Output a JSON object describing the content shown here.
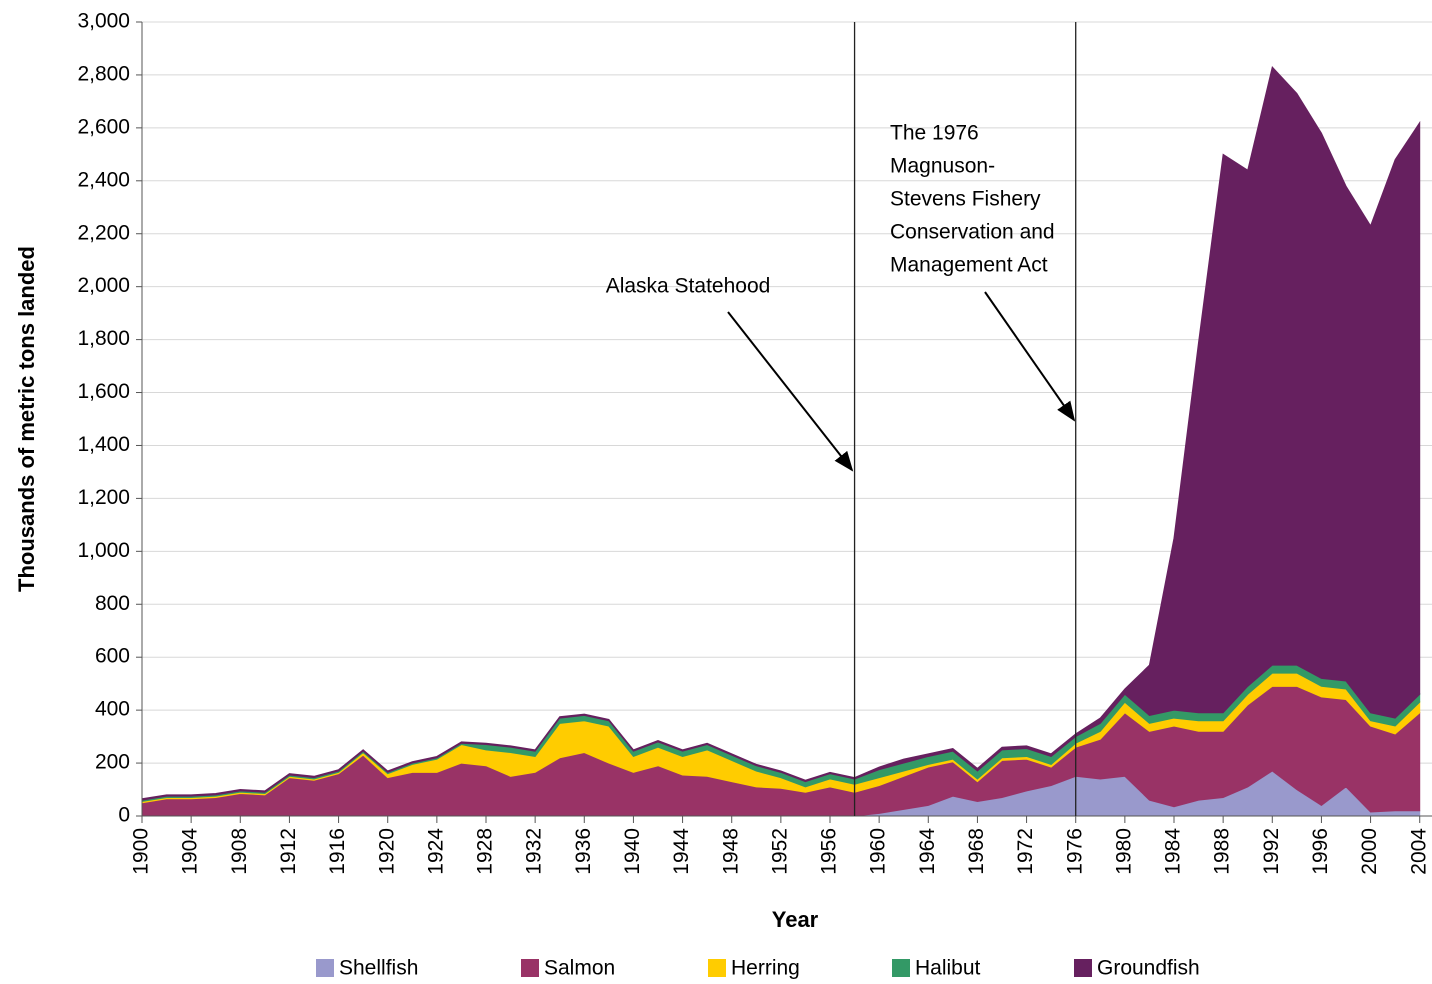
{
  "chart_data": {
    "type": "stacked_area",
    "x_label": "Year",
    "y_label": "Thousands of metric tons landed",
    "x": [
      1900,
      1902,
      1904,
      1906,
      1908,
      1910,
      1912,
      1914,
      1916,
      1918,
      1920,
      1922,
      1924,
      1926,
      1928,
      1930,
      1932,
      1934,
      1936,
      1938,
      1940,
      1942,
      1944,
      1946,
      1948,
      1950,
      1952,
      1954,
      1956,
      1958,
      1960,
      1962,
      1964,
      1966,
      1968,
      1970,
      1972,
      1974,
      1976,
      1978,
      1980,
      1982,
      1984,
      1986,
      1988,
      1990,
      1992,
      1994,
      1996,
      1998,
      2000,
      2002,
      2004
    ],
    "series": [
      {
        "name": "Shellfish",
        "color": "#9999cc",
        "values": [
          0,
          0,
          0,
          0,
          0,
          0,
          0,
          0,
          0,
          0,
          0,
          0,
          0,
          0,
          0,
          0,
          0,
          0,
          0,
          0,
          0,
          0,
          0,
          0,
          0,
          0,
          0,
          0,
          0,
          0,
          10,
          25,
          40,
          75,
          55,
          70,
          95,
          115,
          150,
          140,
          150,
          60,
          35,
          60,
          70,
          110,
          170,
          100,
          40,
          110,
          15,
          20,
          20
        ]
      },
      {
        "name": "Salmon",
        "color": "#993366",
        "values": [
          50,
          65,
          65,
          70,
          85,
          80,
          145,
          135,
          160,
          230,
          145,
          165,
          165,
          200,
          190,
          150,
          165,
          220,
          240,
          200,
          165,
          190,
          155,
          150,
          130,
          110,
          105,
          90,
          110,
          90,
          105,
          125,
          145,
          130,
          75,
          140,
          120,
          70,
          110,
          150,
          240,
          260,
          305,
          260,
          250,
          310,
          320,
          390,
          410,
          330,
          325,
          290,
          370
        ]
      },
      {
        "name": "Herring",
        "color": "#ffcc00",
        "values": [
          5,
          5,
          5,
          5,
          5,
          5,
          5,
          5,
          5,
          10,
          15,
          30,
          50,
          70,
          60,
          90,
          60,
          130,
          120,
          140,
          60,
          70,
          70,
          100,
          80,
          60,
          40,
          20,
          30,
          30,
          30,
          20,
          10,
          10,
          10,
          10,
          10,
          10,
          15,
          30,
          40,
          30,
          30,
          40,
          40,
          40,
          50,
          50,
          40,
          40,
          20,
          30,
          40
        ]
      },
      {
        "name": "Halibut",
        "color": "#339966",
        "values": [
          5,
          5,
          5,
          5,
          5,
          5,
          5,
          5,
          5,
          5,
          5,
          5,
          5,
          5,
          20,
          20,
          20,
          20,
          20,
          20,
          20,
          20,
          20,
          20,
          20,
          20,
          20,
          20,
          20,
          20,
          30,
          30,
          30,
          30,
          30,
          30,
          30,
          30,
          25,
          30,
          30,
          30,
          30,
          30,
          30,
          30,
          30,
          30,
          30,
          30,
          30,
          30,
          30
        ]
      },
      {
        "name": "Groundfish",
        "color": "#66205f",
        "values": [
          5,
          5,
          5,
          5,
          5,
          5,
          5,
          5,
          5,
          5,
          5,
          5,
          5,
          5,
          5,
          5,
          5,
          5,
          5,
          5,
          5,
          5,
          5,
          5,
          5,
          5,
          5,
          5,
          5,
          5,
          10,
          15,
          10,
          10,
          10,
          10,
          10,
          10,
          10,
          20,
          20,
          190,
          650,
          1400,
          2110,
          1950,
          2260,
          2160,
          2060,
          1870,
          1840,
          2110,
          2160
        ]
      }
    ],
    "xlim": [
      1900,
      2005
    ],
    "xticks": [
      1900,
      1904,
      1908,
      1912,
      1916,
      1920,
      1924,
      1928,
      1932,
      1936,
      1940,
      1944,
      1948,
      1952,
      1956,
      1960,
      1964,
      1968,
      1972,
      1976,
      1980,
      1984,
      1988,
      1992,
      1996,
      2000,
      2004
    ],
    "ylim": [
      0,
      3000
    ],
    "yticks": [
      0,
      200,
      400,
      600,
      800,
      {
        "value": 1000,
        "label": "1,000"
      },
      {
        "value": 1200,
        "label": "1,200"
      },
      {
        "value": 1400,
        "label": "1,400"
      },
      {
        "value": 1600,
        "label": "1,600"
      },
      {
        "value": 1800,
        "label": "1,800"
      },
      {
        "value": 2000,
        "label": "2,000"
      },
      {
        "value": 2200,
        "label": "2,200"
      },
      {
        "value": 2400,
        "label": "2,400"
      },
      {
        "value": 2600,
        "label": "2,600"
      },
      {
        "value": 2800,
        "label": "2,800"
      },
      {
        "value": 3000,
        "label": "3,000"
      }
    ],
    "grid": true,
    "legend": "bottom",
    "annotations": [
      {
        "x": 1958,
        "lines": [
          "Alaska Statehood"
        ]
      },
      {
        "x": 1976,
        "lines": [
          "The 1976",
          "Magnuson-",
          "Stevens Fishery",
          "Conservation and",
          "Management Act"
        ]
      }
    ]
  }
}
